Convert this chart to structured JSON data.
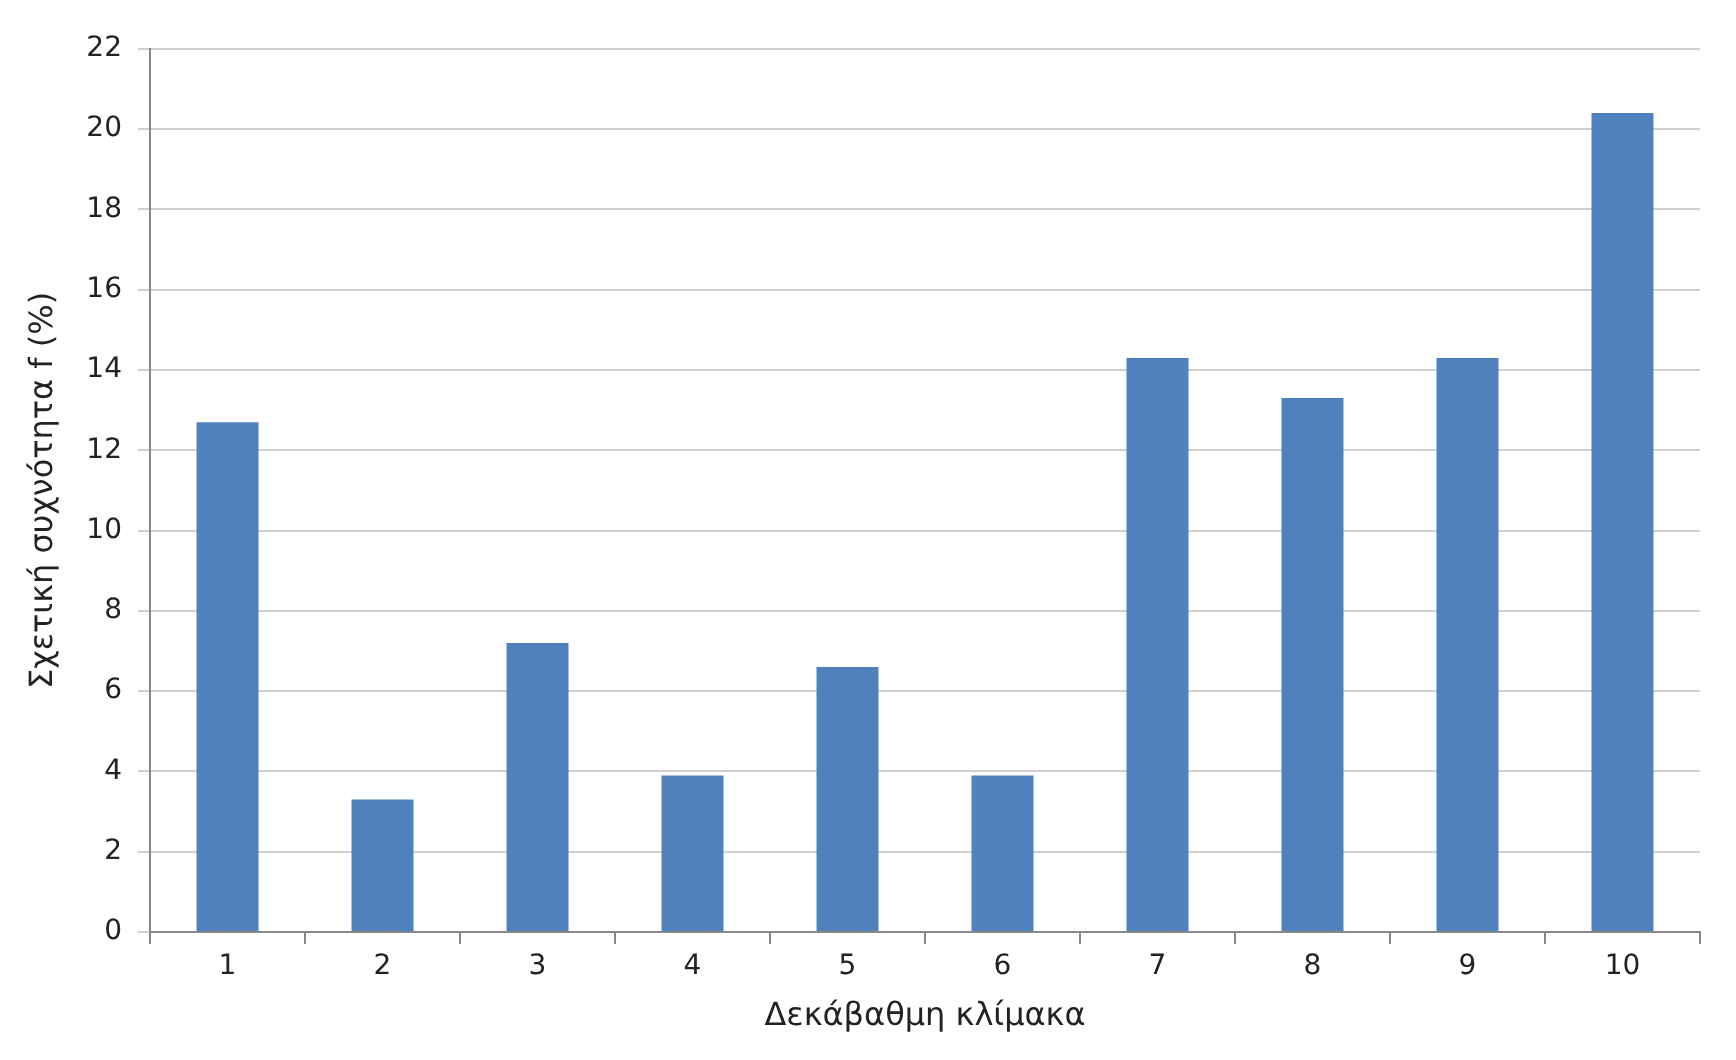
{
  "chart_data": {
    "type": "bar",
    "xlabel": "Δεκάβαθμη κλίμακα",
    "ylabel": "Σχετική συχνότητα f (%)",
    "categories": [
      "1",
      "2",
      "3",
      "4",
      "5",
      "6",
      "7",
      "8",
      "9",
      "10"
    ],
    "values": [
      12.7,
      3.3,
      7.2,
      3.9,
      6.6,
      3.9,
      14.3,
      13.3,
      14.3,
      20.4
    ],
    "color": "#4f81bd",
    "ylim": [
      0,
      22
    ],
    "yticks": [
      0,
      2,
      4,
      6,
      8,
      10,
      12,
      14,
      16,
      18,
      20,
      22
    ],
    "grid": "y",
    "legend": false
  }
}
